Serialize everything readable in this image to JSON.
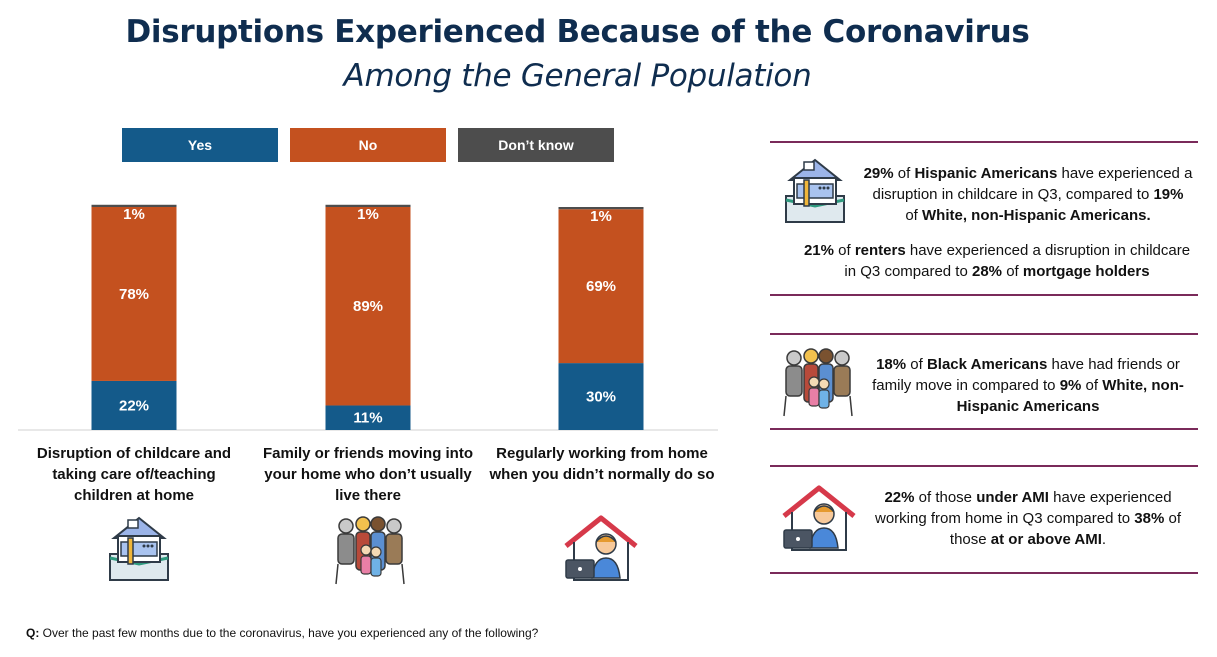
{
  "title": "Disruptions Experienced Because of the Coronavirus",
  "subtitle": "Among the General Population",
  "legend": {
    "yes": "Yes",
    "no": "No",
    "dont_know": "Don’t know"
  },
  "colors": {
    "yes": "#145a8a",
    "no": "#c4511f",
    "dont_know": "#4d4d4d",
    "title": "#0f2d4f",
    "divider": "#7a2a5a"
  },
  "chart_data": {
    "type": "bar",
    "stacked": true,
    "categories": [
      "Disruption of childcare and taking care of/teaching children at home",
      "Family or friends moving into your home who don’t usually live there",
      "Regularly working from home when you didn’t normally do so"
    ],
    "series": [
      {
        "name": "Yes",
        "values": [
          22,
          11,
          30
        ],
        "labels": [
          "22%",
          "11%",
          "30%"
        ]
      },
      {
        "name": "No",
        "values": [
          78,
          89,
          69
        ],
        "labels": [
          "78%",
          "89%",
          "69%"
        ]
      },
      {
        "name": "Don’t know",
        "values": [
          1,
          1,
          1
        ],
        "labels": [
          "1%",
          "1%",
          "1%"
        ]
      }
    ],
    "ylim": [
      0,
      100
    ],
    "grid": false,
    "legend_position": "top"
  },
  "categories_display": {
    "c1": {
      "line1": "Disruption of childcare and",
      "line2": "taking care of/teaching",
      "line3": "children at home"
    },
    "c2": {
      "line1": "Family or friends moving into",
      "line2": "your home who don’t usually",
      "line3": "live there"
    },
    "c3": {
      "line1": "Regularly working from home",
      "line2": "when you didn’t normally do so"
    }
  },
  "panel": {
    "s1": {
      "p1": "29%",
      "t1": " of ",
      "p2": "Hispanic Americans",
      "t2": " have experienced a",
      "t3": "disruption in childcare in Q3, compared to ",
      "p3": "19%",
      "t4": "of ",
      "p4": "White, non-Hispanic Americans."
    },
    "s2": {
      "p1": "21%",
      "t1": " of ",
      "p2": "renters",
      "t2": " have experienced a disruption in childcare",
      "t3": "in Q3 compared to ",
      "p3": "28%",
      "t4": " of ",
      "p4": "mortgage holders"
    },
    "s3": {
      "p1": "18%",
      "t1": " of ",
      "p2": "Black Americans",
      "t2": " have had friends or",
      "t3": "family move in compared to ",
      "p3": "9%",
      "t4": " of ",
      "p4": "White, non-",
      "p5": "Hispanic Americans"
    },
    "s4": {
      "p1": "22%",
      "t1": " of those ",
      "p2": "under AMI",
      "t2": " have experienced",
      "t3": "working from home in Q3 compared to ",
      "p3": "38%",
      "t4": " of",
      "t5": "those ",
      "p4": "at or above AMI",
      "t6": "."
    }
  },
  "footnote": {
    "q": "Q:",
    "text": " Over the past few months due to the coronavirus, have you experienced any of the following?"
  }
}
